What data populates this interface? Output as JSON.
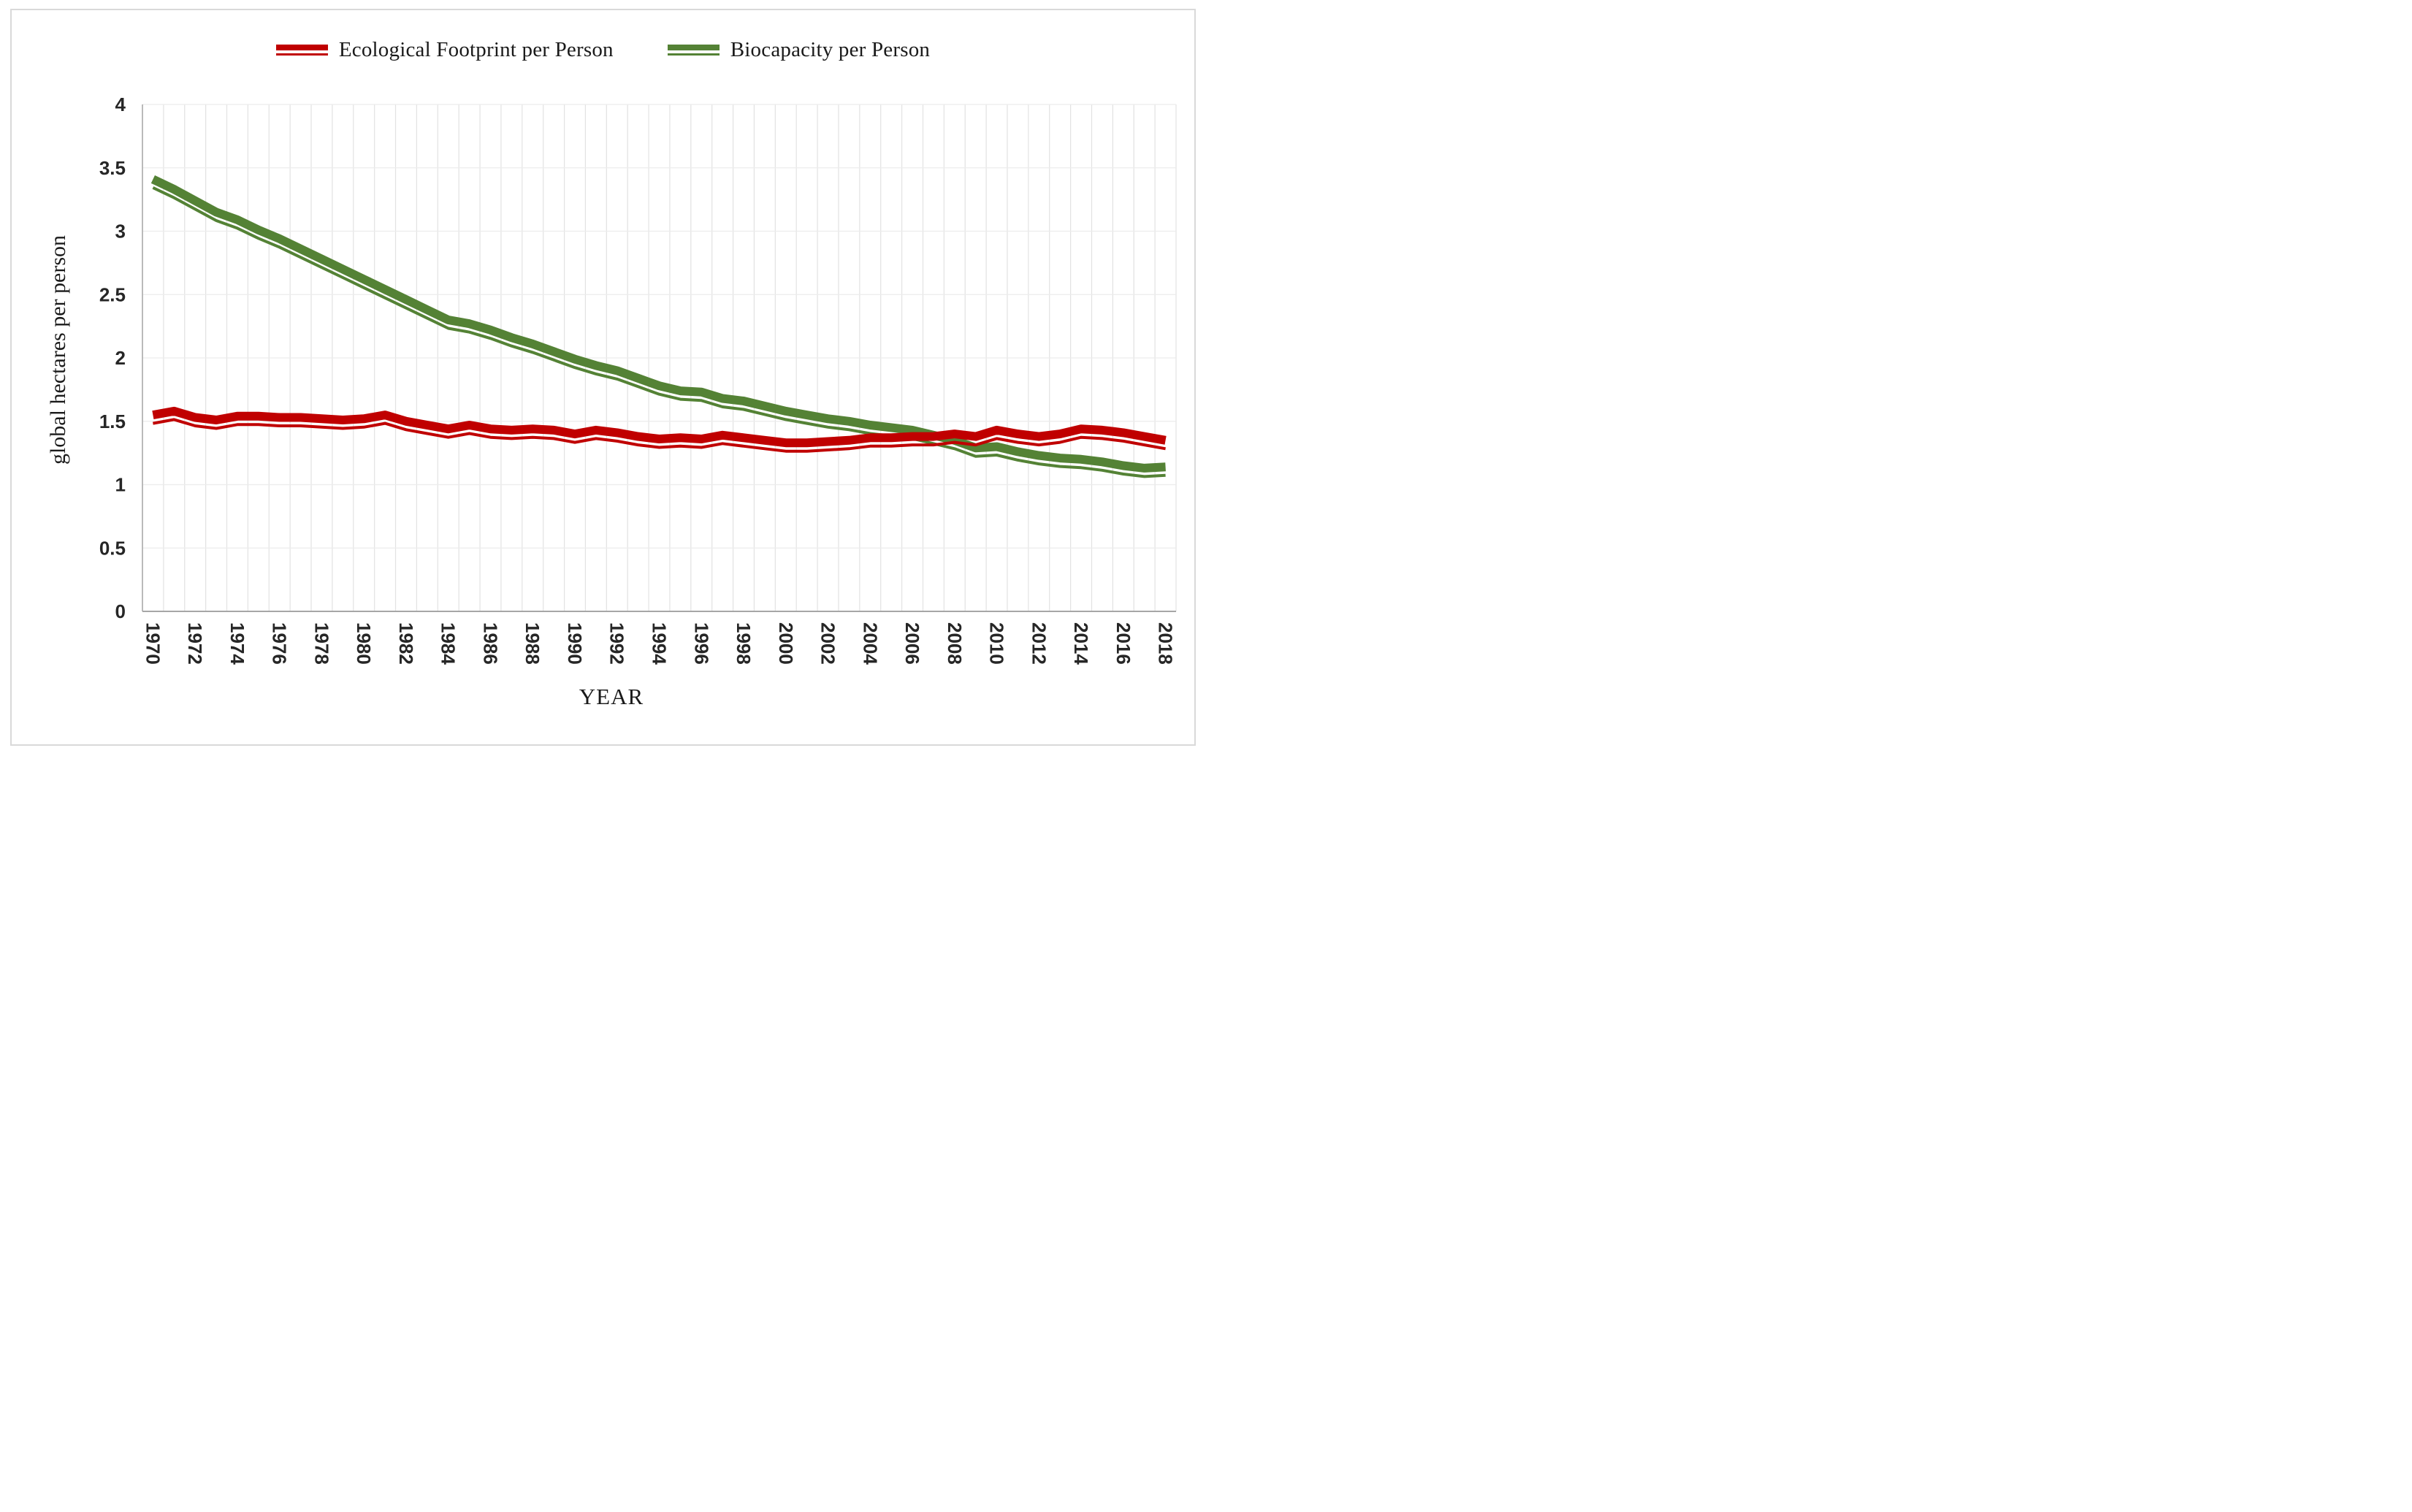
{
  "legend": {
    "items": [
      {
        "label": "Ecological Footprint per Person",
        "color": "#C00000"
      },
      {
        "label": "Biocapacity per Person",
        "color": "#548235"
      }
    ]
  },
  "axes": {
    "y_title": "global hectares per person",
    "x_title": "YEAR",
    "y_ticks": [
      "0",
      "0.5",
      "1",
      "1.5",
      "2",
      "2.5",
      "3",
      "3.5",
      "4"
    ]
  },
  "chart_data": {
    "type": "line",
    "xlabel": "YEAR",
    "ylabel": "global hectares per person",
    "ylim": [
      0,
      4
    ],
    "y_tick_step": 0.5,
    "grid": "on",
    "legend_position": "top",
    "line_style": "double-line (thick with thin offset line)",
    "x": [
      1970,
      1971,
      1972,
      1973,
      1974,
      1975,
      1976,
      1977,
      1978,
      1979,
      1980,
      1981,
      1982,
      1983,
      1984,
      1985,
      1986,
      1987,
      1988,
      1989,
      1990,
      1991,
      1992,
      1993,
      1994,
      1995,
      1996,
      1997,
      1998,
      1999,
      2000,
      2001,
      2002,
      2003,
      2004,
      2005,
      2006,
      2007,
      2008,
      2009,
      2010,
      2011,
      2012,
      2013,
      2014,
      2015,
      2016,
      2017,
      2018
    ],
    "series": [
      {
        "name": "Ecological Footprint per Person",
        "color": "#C00000",
        "values": [
          1.55,
          1.58,
          1.53,
          1.51,
          1.54,
          1.54,
          1.53,
          1.53,
          1.52,
          1.51,
          1.52,
          1.55,
          1.5,
          1.47,
          1.44,
          1.47,
          1.44,
          1.43,
          1.44,
          1.43,
          1.4,
          1.43,
          1.41,
          1.38,
          1.36,
          1.37,
          1.36,
          1.39,
          1.37,
          1.35,
          1.33,
          1.33,
          1.34,
          1.35,
          1.37,
          1.37,
          1.38,
          1.38,
          1.4,
          1.38,
          1.43,
          1.4,
          1.38,
          1.4,
          1.44,
          1.43,
          1.41,
          1.38,
          1.35
        ]
      },
      {
        "name": "Biocapacity per Person",
        "color": "#548235",
        "values": [
          3.41,
          3.33,
          3.24,
          3.15,
          3.09,
          3.01,
          2.94,
          2.86,
          2.78,
          2.7,
          2.62,
          2.54,
          2.46,
          2.38,
          2.3,
          2.27,
          2.22,
          2.16,
          2.11,
          2.05,
          1.99,
          1.94,
          1.9,
          1.84,
          1.78,
          1.74,
          1.73,
          1.68,
          1.66,
          1.62,
          1.58,
          1.55,
          1.52,
          1.5,
          1.47,
          1.45,
          1.43,
          1.39,
          1.35,
          1.29,
          1.3,
          1.26,
          1.23,
          1.21,
          1.2,
          1.18,
          1.15,
          1.13,
          1.14
        ]
      }
    ]
  },
  "style": {
    "grid_color_vertical": "#e2e2e2",
    "grid_color_horizontal": "#ececec",
    "axis_line_color": "#a6a6a6",
    "frame_color": "#d9d9d9"
  }
}
